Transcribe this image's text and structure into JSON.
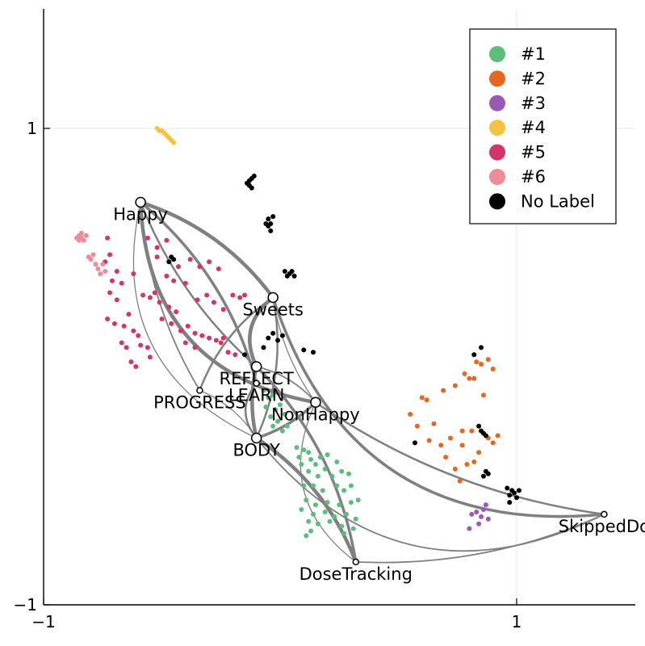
{
  "chart_data": {
    "type": "scatter",
    "title": "",
    "xlabel": "",
    "ylabel": "",
    "xlim": [
      -1,
      1.5
    ],
    "ylim": [
      -1,
      1.5
    ],
    "xticks": [
      {
        "value": -1,
        "label": "−1"
      },
      {
        "value": 1,
        "label": "1"
      }
    ],
    "yticks": [
      {
        "value": -1,
        "label": "−1"
      },
      {
        "value": 1,
        "label": "1"
      }
    ],
    "grid": true,
    "legend_position": "top-right",
    "series": [
      {
        "name": "#1",
        "color": "#5bbf7a",
        "points": [
          [
            -0.07,
            -0.1
          ],
          [
            -0.05,
            -0.13
          ],
          [
            -0.03,
            -0.12
          ],
          [
            -0.06,
            -0.17
          ],
          [
            -0.02,
            -0.18
          ],
          [
            0.0,
            -0.16
          ],
          [
            -0.04,
            -0.21
          ],
          [
            -0.01,
            -0.23
          ],
          [
            0.02,
            -0.2
          ],
          [
            -0.03,
            -0.25
          ],
          [
            0.01,
            -0.27
          ],
          [
            0.03,
            -0.25
          ],
          [
            0.07,
            -0.34
          ],
          [
            0.1,
            -0.35
          ],
          [
            0.12,
            -0.36
          ],
          [
            0.08,
            -0.38
          ],
          [
            0.13,
            -0.39
          ],
          [
            0.17,
            -0.38
          ],
          [
            0.2,
            -0.37
          ],
          [
            0.15,
            -0.41
          ],
          [
            0.19,
            -0.43
          ],
          [
            0.09,
            -0.41
          ],
          [
            0.12,
            -0.44
          ],
          [
            0.24,
            -0.4
          ],
          [
            0.16,
            -0.46
          ],
          [
            0.22,
            -0.46
          ],
          [
            0.26,
            -0.44
          ],
          [
            0.29,
            -0.45
          ],
          [
            0.1,
            -0.5
          ],
          [
            0.14,
            -0.5
          ],
          [
            0.18,
            -0.52
          ],
          [
            0.24,
            -0.5
          ],
          [
            0.27,
            -0.52
          ],
          [
            0.3,
            -0.5
          ],
          [
            0.11,
            -0.56
          ],
          [
            0.15,
            -0.58
          ],
          [
            0.2,
            -0.57
          ],
          [
            0.25,
            -0.58
          ],
          [
            0.3,
            -0.57
          ],
          [
            0.33,
            -0.56
          ],
          [
            0.09,
            -0.6
          ],
          [
            0.14,
            -0.62
          ],
          [
            0.19,
            -0.61
          ],
          [
            0.23,
            -0.63
          ],
          [
            0.28,
            -0.62
          ],
          [
            0.32,
            -0.64
          ],
          [
            0.12,
            -0.65
          ],
          [
            0.16,
            -0.66
          ],
          [
            0.21,
            -0.65
          ],
          [
            0.26,
            -0.67
          ],
          [
            0.31,
            -0.68
          ],
          [
            0.13,
            -0.69
          ],
          [
            0.11,
            -0.71
          ],
          [
            0.27,
            -0.7
          ]
        ]
      },
      {
        "name": "#2",
        "color": "#e8671f",
        "points": [
          [
            0.6,
            -0.13
          ],
          [
            0.62,
            -0.14
          ],
          [
            0.55,
            -0.2
          ],
          [
            0.58,
            -0.25
          ],
          [
            0.65,
            -0.24
          ],
          [
            0.69,
            -0.1
          ],
          [
            0.74,
            -0.08
          ],
          [
            0.78,
            -0.03
          ],
          [
            0.8,
            -0.05
          ],
          [
            0.82,
            -0.05
          ],
          [
            0.85,
            0.01
          ],
          [
            0.88,
            0.03
          ],
          [
            0.83,
            0.02
          ],
          [
            0.9,
            -0.01
          ],
          [
            0.86,
            -0.12
          ],
          [
            0.63,
            -0.31
          ],
          [
            0.68,
            -0.33
          ],
          [
            0.7,
            -0.38
          ],
          [
            0.74,
            -0.43
          ],
          [
            0.76,
            -0.48
          ],
          [
            0.79,
            -0.41
          ],
          [
            0.82,
            -0.4
          ],
          [
            0.84,
            -0.36
          ],
          [
            0.77,
            -0.33
          ],
          [
            0.88,
            -0.3
          ],
          [
            0.92,
            -0.29
          ],
          [
            0.9,
            -0.32
          ],
          [
            0.72,
            -0.3
          ],
          [
            0.77,
            -0.27
          ],
          [
            0.81,
            -0.27
          ]
        ]
      },
      {
        "name": "#3",
        "color": "#9b59b6",
        "points": [
          [
            0.81,
            -0.62
          ],
          [
            0.83,
            -0.61
          ],
          [
            0.86,
            -0.6
          ],
          [
            0.85,
            -0.63
          ],
          [
            0.88,
            -0.64
          ],
          [
            0.84,
            -0.66
          ],
          [
            0.8,
            -0.68
          ],
          [
            0.87,
            -0.58
          ]
        ]
      },
      {
        "name": "#4",
        "color": "#f7c240",
        "points": [
          [
            -0.52,
            1.0
          ],
          [
            -0.51,
            0.99
          ],
          [
            -0.5,
            0.99
          ],
          [
            -0.49,
            0.98
          ],
          [
            -0.48,
            0.97
          ],
          [
            -0.47,
            0.96
          ],
          [
            -0.46,
            0.95
          ],
          [
            -0.45,
            0.94
          ]
        ]
      },
      {
        "name": "#5",
        "color": "#d4346b",
        "points": [
          [
            -0.73,
            0.54
          ],
          [
            -0.74,
            0.44
          ],
          [
            -0.72,
            0.47
          ],
          [
            -0.69,
            0.4
          ],
          [
            -0.71,
            0.36
          ],
          [
            -0.67,
            0.35
          ],
          [
            -0.72,
            0.31
          ],
          [
            -0.69,
            0.28
          ],
          [
            -0.73,
            0.2
          ],
          [
            -0.7,
            0.18
          ],
          [
            -0.64,
            0.22
          ],
          [
            -0.66,
            0.17
          ],
          [
            -0.62,
            0.15
          ],
          [
            -0.6,
            0.13
          ],
          [
            -0.67,
            0.1
          ],
          [
            -0.65,
            0.08
          ],
          [
            -0.59,
            0.09
          ],
          [
            -0.56,
            0.08
          ],
          [
            -0.63,
            0.02
          ],
          [
            -0.61,
            0.0
          ],
          [
            -0.55,
            0.04
          ],
          [
            -0.58,
            0.3
          ],
          [
            -0.55,
            0.29
          ],
          [
            -0.53,
            0.31
          ],
          [
            -0.51,
            0.27
          ],
          [
            -0.47,
            0.25
          ],
          [
            -0.44,
            0.23
          ],
          [
            -0.5,
            0.2
          ],
          [
            -0.46,
            0.18
          ],
          [
            -0.42,
            0.15
          ],
          [
            -0.39,
            0.17
          ],
          [
            -0.36,
            0.14
          ],
          [
            -0.33,
            0.13
          ],
          [
            -0.3,
            0.12
          ],
          [
            -0.27,
            0.11
          ],
          [
            -0.24,
            0.12
          ],
          [
            -0.43,
            0.42
          ],
          [
            -0.38,
            0.45
          ],
          [
            -0.34,
            0.42
          ],
          [
            -0.3,
            0.44
          ],
          [
            -0.26,
            0.41
          ],
          [
            -0.35,
            0.28
          ],
          [
            -0.31,
            0.3
          ],
          [
            -0.28,
            0.27
          ],
          [
            -0.24,
            0.24
          ],
          [
            -0.2,
            0.3
          ],
          [
            -0.17,
            0.29
          ],
          [
            -0.15,
            0.3
          ],
          [
            -0.52,
            0.5
          ],
          [
            -0.48,
            0.53
          ],
          [
            -0.52,
            0.46
          ],
          [
            -0.56,
            0.54
          ],
          [
            -0.62,
            0.39
          ],
          [
            -0.48,
            0.38
          ],
          [
            -0.45,
            0.36
          ],
          [
            -0.4,
            0.35
          ],
          [
            -0.25,
            0.1
          ],
          [
            -0.22,
            0.06
          ],
          [
            -0.19,
            0.05
          ],
          [
            -0.4,
            0.1
          ],
          [
            -0.36,
            0.08
          ]
        ]
      },
      {
        "name": "#6",
        "color": "#f08c98",
        "points": [
          [
            -0.86,
            0.54
          ],
          [
            -0.85,
            0.53
          ],
          [
            -0.84,
            0.54
          ],
          [
            -0.85,
            0.55
          ],
          [
            -0.84,
            0.56
          ],
          [
            -0.83,
            0.53
          ],
          [
            -0.82,
            0.55
          ],
          [
            -0.81,
            0.46
          ],
          [
            -0.79,
            0.47
          ],
          [
            -0.8,
            0.45
          ],
          [
            -0.78,
            0.43
          ],
          [
            -0.77,
            0.41
          ],
          [
            -0.76,
            0.39
          ],
          [
            -0.75,
            0.43
          ],
          [
            -0.74,
            0.4
          ]
        ]
      },
      {
        "name": "No Label",
        "color": "#000000",
        "points": [
          [
            -0.14,
            0.77
          ],
          [
            -0.13,
            0.78
          ],
          [
            -0.12,
            0.79
          ],
          [
            -0.11,
            0.8
          ],
          [
            -0.13,
            0.76
          ],
          [
            -0.12,
            0.75
          ],
          [
            -0.06,
            0.6
          ],
          [
            -0.05,
            0.62
          ],
          [
            -0.04,
            0.6
          ],
          [
            -0.05,
            0.59
          ],
          [
            -0.03,
            0.63
          ],
          [
            -0.04,
            0.57
          ],
          [
            -0.46,
            0.46
          ],
          [
            -0.45,
            0.45
          ],
          [
            -0.47,
            0.44
          ],
          [
            0.02,
            0.4
          ],
          [
            0.04,
            0.39
          ],
          [
            0.05,
            0.4
          ],
          [
            0.06,
            0.38
          ],
          [
            0.03,
            0.38
          ],
          [
            -0.05,
            0.12
          ],
          [
            -0.03,
            0.14
          ],
          [
            -0.01,
            0.11
          ],
          [
            0.01,
            0.13
          ],
          [
            -0.07,
            0.08
          ],
          [
            0.1,
            0.07
          ],
          [
            0.14,
            0.06
          ],
          [
            -0.15,
            0.05
          ],
          [
            0.57,
            -0.32
          ],
          [
            0.85,
            0.08
          ],
          [
            0.82,
            0.05
          ],
          [
            0.84,
            -0.25
          ],
          [
            0.85,
            -0.27
          ],
          [
            0.86,
            -0.28
          ],
          [
            0.87,
            -0.29
          ],
          [
            0.88,
            -0.45
          ],
          [
            0.86,
            -0.46
          ],
          [
            0.87,
            -0.44
          ],
          [
            0.97,
            -0.54
          ],
          [
            0.99,
            -0.53
          ],
          [
            1.0,
            -0.55
          ],
          [
            0.98,
            -0.52
          ],
          [
            0.96,
            -0.51
          ],
          [
            1.01,
            -0.52
          ],
          [
            0.97,
            -0.57
          ]
        ]
      }
    ],
    "nodes": [
      {
        "name": "Happy",
        "x": -0.59,
        "y": 0.69
      },
      {
        "name": "Sweets",
        "x": -0.03,
        "y": 0.29
      },
      {
        "name": "REFLECT",
        "x": -0.1,
        "y": 0.0
      },
      {
        "name": "PROGRESS",
        "x": -0.34,
        "y": -0.1
      },
      {
        "name": "LEARN",
        "x": -0.1,
        "y": -0.07
      },
      {
        "name": "NonHappy",
        "x": 0.15,
        "y": -0.15
      },
      {
        "name": "BODY",
        "x": -0.1,
        "y": -0.3
      },
      {
        "name": "DoseTracking",
        "x": 0.32,
        "y": -0.82
      },
      {
        "name": "SkippedDo",
        "x": 1.37,
        "y": -0.62
      }
    ],
    "edges": [
      [
        "Happy",
        "Sweets"
      ],
      [
        "Happy",
        "REFLECT"
      ],
      [
        "Happy",
        "BODY"
      ],
      [
        "Happy",
        "LEARN"
      ],
      [
        "Happy",
        "PROGRESS"
      ],
      [
        "Sweets",
        "REFLECT"
      ],
      [
        "Sweets",
        "BODY"
      ],
      [
        "Sweets",
        "NonHappy"
      ],
      [
        "Sweets",
        "SkippedDo"
      ],
      [
        "REFLECT",
        "NonHappy"
      ],
      [
        "REFLECT",
        "BODY"
      ],
      [
        "LEARN",
        "BODY"
      ],
      [
        "PROGRESS",
        "BODY"
      ],
      [
        "BODY",
        "NonHappy"
      ],
      [
        "BODY",
        "SkippedDo"
      ],
      [
        "BODY",
        "DoseTracking"
      ],
      [
        "NonHappy",
        "SkippedDo"
      ],
      [
        "NonHappy",
        "DoseTracking"
      ],
      [
        "REFLECT",
        "DoseTracking"
      ],
      [
        "DoseTracking",
        "SkippedDo"
      ],
      [
        "Happy",
        "NonHappy"
      ],
      [
        "PROGRESS",
        "Sweets"
      ]
    ]
  }
}
